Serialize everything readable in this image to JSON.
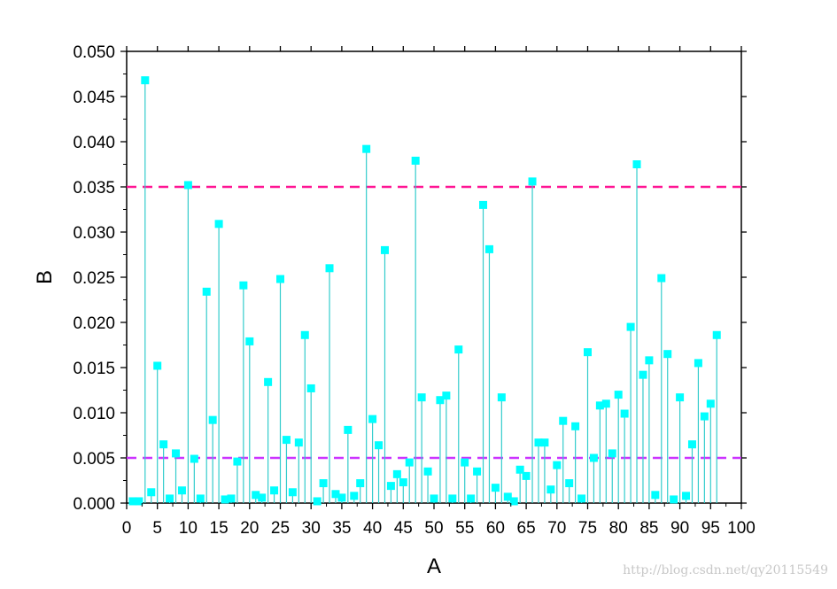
{
  "chart_data": {
    "type": "scatter",
    "style": "drop-lines",
    "xlabel": "A",
    "ylabel": "B",
    "xlim": [
      0,
      100
    ],
    "ylim": [
      0,
      0.05
    ],
    "x_ticks": [
      "0",
      "5",
      "10",
      "15",
      "20",
      "25",
      "30",
      "35",
      "40",
      "45",
      "50",
      "55",
      "60",
      "65",
      "70",
      "75",
      "80",
      "85",
      "90",
      "95",
      "100"
    ],
    "y_ticks": [
      "0.000",
      "0.005",
      "0.010",
      "0.015",
      "0.020",
      "0.025",
      "0.030",
      "0.035",
      "0.040",
      "0.045",
      "0.050"
    ],
    "grid": false,
    "marker_color": "#00ffff",
    "line_color": "#33cccc",
    "reference_lines": [
      {
        "y": 0.035,
        "color": "#ff1493",
        "style": "dashed"
      },
      {
        "y": 0.005,
        "color": "#cc33ff",
        "style": "dashed"
      }
    ],
    "series": [
      {
        "x": [
          1,
          2,
          3,
          4,
          5,
          6,
          7,
          8,
          9,
          10,
          11,
          12,
          13,
          14,
          15,
          16,
          17,
          18,
          19,
          20,
          21,
          22,
          23,
          24,
          25,
          26,
          27,
          28,
          29,
          30,
          31,
          32,
          33,
          34,
          35,
          36,
          37,
          38,
          39,
          40,
          41,
          42,
          43,
          44,
          45,
          46,
          47,
          48,
          49,
          50,
          51,
          52,
          53,
          54,
          55,
          56,
          57,
          58,
          59,
          60,
          61,
          62,
          63,
          64,
          65,
          66,
          67,
          68,
          69,
          70,
          71,
          72,
          73,
          74,
          75,
          76,
          77,
          78,
          79,
          80,
          81,
          82,
          83,
          84,
          85,
          86,
          87,
          88,
          89,
          90,
          91,
          92,
          93,
          94,
          95,
          96
        ],
        "values": [
          0.0002,
          0.0002,
          0.0468,
          0.0012,
          0.0152,
          0.0065,
          0.0005,
          0.0055,
          0.0014,
          0.0352,
          0.0049,
          0.0005,
          0.0234,
          0.0092,
          0.0309,
          0.0004,
          0.0005,
          0.0046,
          0.0241,
          0.0179,
          0.0009,
          0.0006,
          0.0134,
          0.0014,
          0.0248,
          0.007,
          0.0012,
          0.0067,
          0.0186,
          0.0127,
          0.0002,
          0.0022,
          0.026,
          0.001,
          0.0006,
          0.0081,
          0.0008,
          0.0022,
          0.0392,
          0.0093,
          0.0064,
          0.028,
          0.0019,
          0.0032,
          0.0023,
          0.0045,
          0.0379,
          0.0117,
          0.0035,
          0.0005,
          0.0114,
          0.0119,
          0.0005,
          0.017,
          0.0045,
          0.0005,
          0.0035,
          0.033,
          0.0281,
          0.0017,
          0.0117,
          0.0007,
          0.0002,
          0.0037,
          0.003,
          0.0356,
          0.0067,
          0.0067,
          0.0015,
          0.0042,
          0.0091,
          0.0022,
          0.0085,
          0.0005,
          0.0167,
          0.005,
          0.0108,
          0.011,
          0.0055,
          0.012,
          0.0099,
          0.0195,
          0.0375,
          0.0142,
          0.0158,
          0.0009,
          0.0249,
          0.0165,
          0.0004,
          0.0117,
          0.0008,
          0.0065,
          0.0155,
          0.0096,
          0.011,
          0.0186
        ]
      }
    ]
  },
  "watermark": "http://blog.csdn.net/qy20115549"
}
